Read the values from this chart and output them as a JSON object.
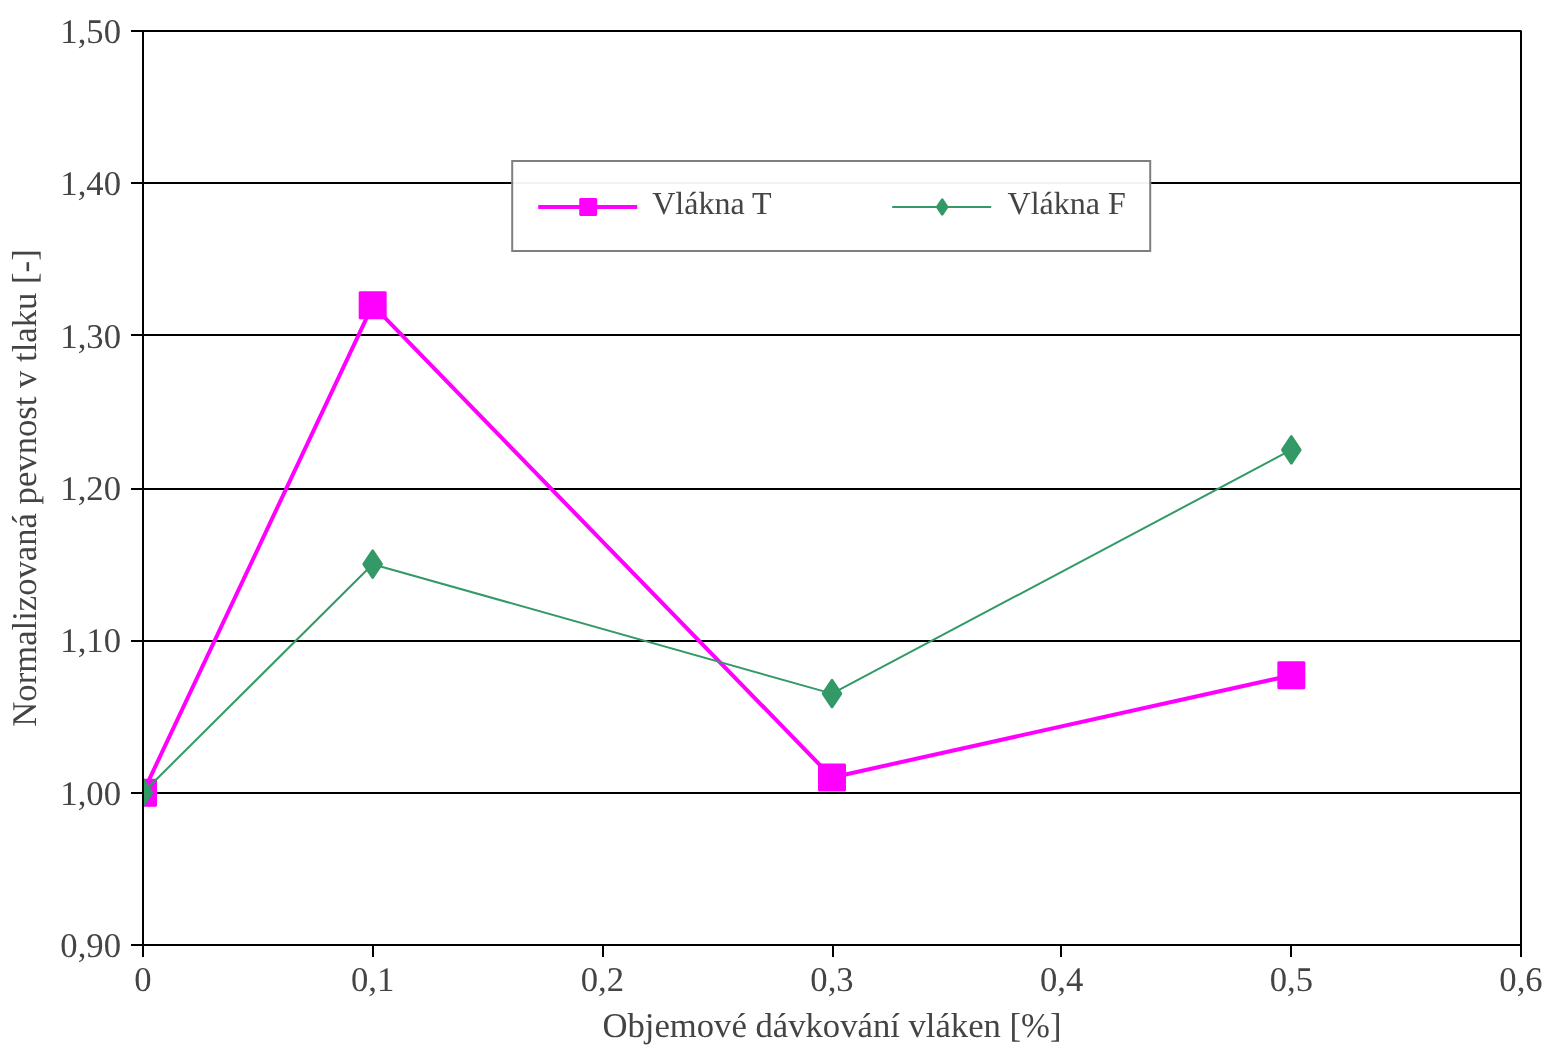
{
  "chart_data": {
    "type": "line",
    "xlabel": "Objemové dávkování vláken [%]",
    "ylabel": "Normalizovaná pevnost v tlaku [-]",
    "xlim": [
      0,
      0.6
    ],
    "ylim": [
      0.9,
      1.5
    ],
    "xticks": [
      0,
      {
        "value": 0.1,
        "label": "0,1"
      },
      {
        "value": 0.2,
        "label": "0,2"
      },
      {
        "value": 0.3,
        "label": "0,3"
      },
      {
        "value": 0.4,
        "label": "0,4"
      },
      {
        "value": 0.5,
        "label": "0,5"
      },
      {
        "value": 0.6,
        "label": "0,6"
      }
    ],
    "yticks": [
      {
        "value": 0.9,
        "label": "0,90"
      },
      {
        "value": 1.0,
        "label": "1,00"
      },
      {
        "value": 1.1,
        "label": "1,10"
      },
      {
        "value": 1.2,
        "label": "1,20"
      },
      {
        "value": 1.3,
        "label": "1,30"
      },
      {
        "value": 1.4,
        "label": "1,40"
      },
      {
        "value": 1.5,
        "label": "1,50"
      }
    ],
    "x": [
      0,
      0.1,
      0.3,
      0.5
    ],
    "grid": "y",
    "legend": "top",
    "series": [
      {
        "name": "Vlákna T",
        "color": "#ff00ff",
        "marker": "square",
        "values": [
          1.0,
          1.32,
          1.01,
          1.077
        ]
      },
      {
        "name": "Vlákna F",
        "color": "#339966",
        "marker": "diamond",
        "values": [
          1.0,
          1.15,
          1.065,
          1.225
        ]
      }
    ]
  }
}
